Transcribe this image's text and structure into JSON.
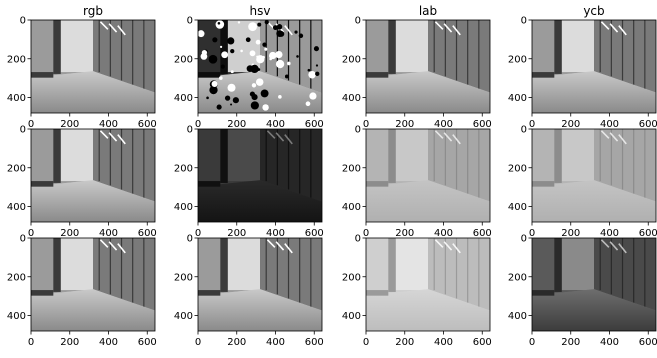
{
  "chart_data": {
    "type": "image-grid",
    "rows": 3,
    "columns": 4,
    "column_titles": [
      "rgb",
      "hsv",
      "lab",
      "ycb"
    ],
    "image_width": 640,
    "image_height": 480,
    "xlim": [
      0,
      640
    ],
    "ylim": [
      480,
      0
    ],
    "x_ticks": [
      0,
      200,
      400,
      600
    ],
    "y_ticks": [
      0,
      200,
      400
    ],
    "x_tick_labels": [
      "0",
      "200",
      "400",
      "600"
    ],
    "y_tick_labels": [
      "0",
      "200",
      "400"
    ],
    "colormap": "grayscale",
    "panels": [
      {
        "row": 0,
        "col": 0,
        "channel_space": "rgb",
        "tone": "normal"
      },
      {
        "row": 0,
        "col": 1,
        "channel_space": "hsv",
        "tone": "hue-speckled"
      },
      {
        "row": 0,
        "col": 2,
        "channel_space": "lab",
        "tone": "normal"
      },
      {
        "row": 0,
        "col": 3,
        "channel_space": "ycb",
        "tone": "normal"
      },
      {
        "row": 1,
        "col": 0,
        "channel_space": "rgb",
        "tone": "normal"
      },
      {
        "row": 1,
        "col": 1,
        "channel_space": "hsv",
        "tone": "dark"
      },
      {
        "row": 1,
        "col": 2,
        "channel_space": "lab",
        "tone": "flat-light"
      },
      {
        "row": 1,
        "col": 3,
        "channel_space": "ycb",
        "tone": "flat-light"
      },
      {
        "row": 2,
        "col": 0,
        "channel_space": "rgb",
        "tone": "normal"
      },
      {
        "row": 2,
        "col": 1,
        "channel_space": "hsv",
        "tone": "normal"
      },
      {
        "row": 2,
        "col": 2,
        "channel_space": "lab",
        "tone": "faded"
      },
      {
        "row": 2,
        "col": 3,
        "channel_space": "ycb",
        "tone": "dim"
      }
    ]
  }
}
